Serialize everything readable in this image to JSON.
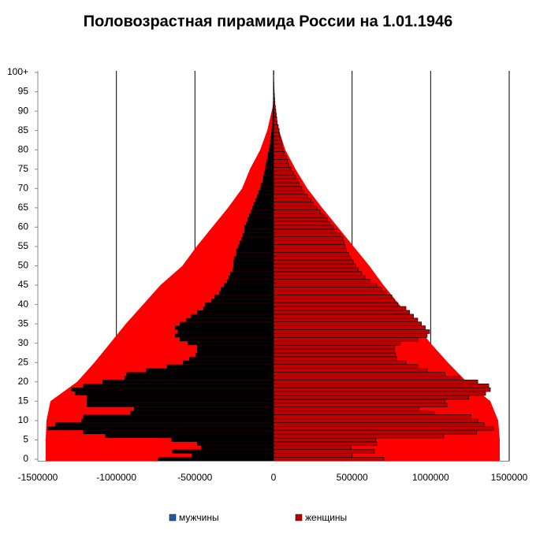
{
  "chart_data": {
    "type": "pyramid",
    "title": "Половозрастная пирамида России на 1.01.1946",
    "categories": [
      "0",
      null,
      null,
      null,
      null,
      "5",
      null,
      null,
      null,
      null,
      "10",
      null,
      null,
      null,
      null,
      "15",
      null,
      null,
      null,
      null,
      "20",
      null,
      null,
      null,
      null,
      "25",
      null,
      null,
      null,
      null,
      "30",
      null,
      null,
      null,
      null,
      "35",
      null,
      null,
      null,
      null,
      "40",
      null,
      null,
      null,
      null,
      "45",
      null,
      null,
      null,
      null,
      "50",
      null,
      null,
      null,
      null,
      "55",
      null,
      null,
      null,
      null,
      "60",
      null,
      null,
      null,
      null,
      "65",
      null,
      null,
      null,
      null,
      "70",
      null,
      null,
      null,
      null,
      "75",
      null,
      null,
      null,
      null,
      "80",
      null,
      null,
      null,
      null,
      "85",
      null,
      null,
      null,
      null,
      "90",
      null,
      null,
      null,
      null,
      "95",
      null,
      null,
      null,
      null,
      "100+"
    ],
    "series": [
      {
        "name": "мужчины",
        "color": "#1f5aa6",
        "bar_color": "#000000",
        "values": [
          -735000,
          -522000,
          -645000,
          -462000,
          -486000,
          -651000,
          -1071000,
          -1212000,
          -1437000,
          -1389000,
          -1224000,
          -1212000,
          -912000,
          -888000,
          -1188000,
          -1188000,
          -1188000,
          -1263000,
          -1287000,
          -1212000,
          -1089000,
          -948000,
          -936000,
          -813000,
          -678000,
          -576000,
          -537000,
          -495000,
          -486000,
          -486000,
          -546000,
          -597000,
          -627000,
          -612000,
          -627000,
          -597000,
          -555000,
          -525000,
          -486000,
          -447000,
          -435000,
          -396000,
          -375000,
          -345000,
          -336000,
          -315000,
          -297000,
          -285000,
          -276000,
          -261000,
          -255000,
          -255000,
          -252000,
          -237000,
          -237000,
          -225000,
          -216000,
          -204000,
          -195000,
          -186000,
          -186000,
          -174000,
          -165000,
          -156000,
          -144000,
          -135000,
          -126000,
          -114000,
          -105000,
          -96000,
          -84000,
          -81000,
          -69000,
          -66000,
          -60000,
          -54000,
          -51000,
          -45000,
          -39000,
          -36000,
          -30000,
          -24000,
          -21000,
          -18000,
          -15000,
          -12000,
          -10500,
          -9000,
          -7500,
          -6000,
          -5400,
          -4500,
          -3600,
          -3000,
          -2400,
          -1800,
          -1500,
          -1200,
          -900,
          -600,
          -900
        ]
      },
      {
        "name": "женщины",
        "color": "#c00000",
        "bar_color": "#c00000",
        "values": [
          702000,
          501000,
          642000,
          492000,
          657000,
          651000,
          1083000,
          1293000,
          1400000,
          1340000,
          1300000,
          1257000,
          1026000,
          927000,
          1104000,
          1092000,
          1242000,
          1350000,
          1380000,
          1370000,
          1300000,
          1188000,
          1092000,
          978000,
          918000,
          843000,
          783000,
          777000,
          768000,
          768000,
          807000,
          918000,
          978000,
          993000,
          966000,
          942000,
          918000,
          891000,
          867000,
          843000,
          792000,
          768000,
          753000,
          717000,
          687000,
          657000,
          615000,
          582000,
          561000,
          540000,
          525000,
          507000,
          492000,
          477000,
          465000,
          456000,
          450000,
          441000,
          426000,
          405000,
          381000,
          360000,
          342000,
          321000,
          297000,
          276000,
          255000,
          237000,
          216000,
          195000,
          180000,
          165000,
          156000,
          141000,
          126000,
          111000,
          99000,
          90000,
          81000,
          69000,
          60000,
          54000,
          51000,
          45000,
          39000,
          36000,
          30000,
          24000,
          21000,
          18000,
          15000,
          12000,
          9000,
          7500,
          6000,
          4500,
          3600,
          2700,
          2100,
          1500,
          2400
        ]
      }
    ],
    "envelope": {
      "color": "#ff0000",
      "ages": [
        0,
        5,
        10,
        15,
        20,
        25,
        30,
        35,
        40,
        45,
        50,
        55,
        60,
        65,
        70,
        75,
        80,
        85,
        92
      ],
      "male": [
        -1450000,
        -1450000,
        -1445000,
        -1420000,
        -1250000,
        -1140000,
        -1040000,
        -940000,
        -830000,
        -720000,
        -580000,
        -490000,
        -390000,
        -290000,
        -200000,
        -150000,
        -85000,
        -40000,
        0
      ],
      "female": [
        1440000,
        1440000,
        1430000,
        1380000,
        1230000,
        1110000,
        1000000,
        900000,
        800000,
        700000,
        610000,
        510000,
        410000,
        310000,
        215000,
        140000,
        75000,
        35000,
        0
      ]
    },
    "xlim": [
      -1500000,
      1500000
    ],
    "xticks": [
      -1500000,
      -1000000,
      -500000,
      0,
      500000,
      1000000,
      1500000
    ],
    "grid": true
  }
}
